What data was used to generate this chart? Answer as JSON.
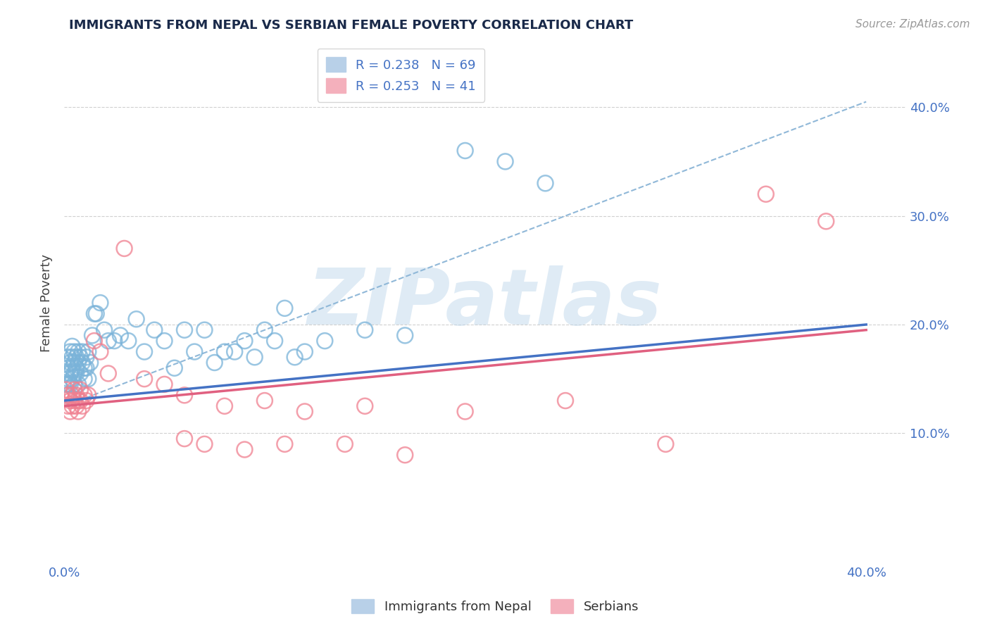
{
  "title": "IMMIGRANTS FROM NEPAL VS SERBIAN FEMALE POVERTY CORRELATION CHART",
  "source": "Source: ZipAtlas.com",
  "ylabel_left": "Female Poverty",
  "xlim": [
    0.0,
    0.42
  ],
  "ylim": [
    -0.02,
    0.46
  ],
  "nepal_color": "#7ab3d9",
  "serbian_color": "#f08090",
  "nepal_line_color": "#4472c4",
  "serbian_line_color": "#e06080",
  "dashed_line_color": "#90b8d8",
  "grid_color": "#d0d0d0",
  "title_color": "#1a2a4a",
  "axis_label_color": "#4472c4",
  "background_color": "#ffffff",
  "watermark": "ZIPatlas",
  "nepal_line_x": [
    0.0,
    0.4
  ],
  "nepal_line_y": [
    0.13,
    0.2
  ],
  "serbian_line_x": [
    0.0,
    0.4
  ],
  "serbian_line_y": [
    0.125,
    0.195
  ],
  "dashed_line_x": [
    0.0,
    0.4
  ],
  "dashed_line_y": [
    0.125,
    0.405
  ],
  "nepal_scatter_x": [
    0.001,
    0.001,
    0.001,
    0.002,
    0.002,
    0.002,
    0.002,
    0.003,
    0.003,
    0.003,
    0.003,
    0.004,
    0.004,
    0.004,
    0.004,
    0.005,
    0.005,
    0.005,
    0.005,
    0.006,
    0.006,
    0.006,
    0.007,
    0.007,
    0.007,
    0.008,
    0.008,
    0.009,
    0.009,
    0.01,
    0.01,
    0.011,
    0.011,
    0.012,
    0.012,
    0.013,
    0.014,
    0.015,
    0.016,
    0.018,
    0.02,
    0.022,
    0.025,
    0.028,
    0.032,
    0.036,
    0.04,
    0.045,
    0.05,
    0.06,
    0.07,
    0.08,
    0.09,
    0.1,
    0.11,
    0.12,
    0.13,
    0.15,
    0.17,
    0.2,
    0.22,
    0.24,
    0.055,
    0.065,
    0.075,
    0.085,
    0.095,
    0.105,
    0.115
  ],
  "nepal_scatter_y": [
    0.155,
    0.145,
    0.135,
    0.16,
    0.15,
    0.17,
    0.145,
    0.165,
    0.155,
    0.175,
    0.145,
    0.17,
    0.16,
    0.15,
    0.18,
    0.155,
    0.165,
    0.145,
    0.175,
    0.16,
    0.17,
    0.155,
    0.165,
    0.175,
    0.145,
    0.17,
    0.155,
    0.165,
    0.175,
    0.16,
    0.15,
    0.17,
    0.16,
    0.175,
    0.15,
    0.165,
    0.19,
    0.21,
    0.21,
    0.22,
    0.195,
    0.185,
    0.185,
    0.19,
    0.185,
    0.205,
    0.175,
    0.195,
    0.185,
    0.195,
    0.195,
    0.175,
    0.185,
    0.195,
    0.215,
    0.175,
    0.185,
    0.195,
    0.19,
    0.36,
    0.35,
    0.33,
    0.16,
    0.175,
    0.165,
    0.175,
    0.17,
    0.185,
    0.17
  ],
  "serbian_scatter_x": [
    0.001,
    0.002,
    0.002,
    0.003,
    0.003,
    0.004,
    0.004,
    0.005,
    0.005,
    0.006,
    0.006,
    0.007,
    0.007,
    0.008,
    0.008,
    0.009,
    0.01,
    0.011,
    0.012,
    0.015,
    0.018,
    0.022,
    0.03,
    0.04,
    0.05,
    0.06,
    0.08,
    0.1,
    0.12,
    0.15,
    0.2,
    0.25,
    0.3,
    0.35,
    0.38,
    0.06,
    0.07,
    0.09,
    0.11,
    0.14,
    0.17
  ],
  "serbian_scatter_y": [
    0.14,
    0.135,
    0.125,
    0.13,
    0.12,
    0.125,
    0.135,
    0.13,
    0.14,
    0.125,
    0.135,
    0.13,
    0.12,
    0.14,
    0.13,
    0.125,
    0.135,
    0.13,
    0.135,
    0.185,
    0.175,
    0.155,
    0.27,
    0.15,
    0.145,
    0.135,
    0.125,
    0.13,
    0.12,
    0.125,
    0.12,
    0.13,
    0.09,
    0.32,
    0.295,
    0.095,
    0.09,
    0.085,
    0.09,
    0.09,
    0.08
  ]
}
